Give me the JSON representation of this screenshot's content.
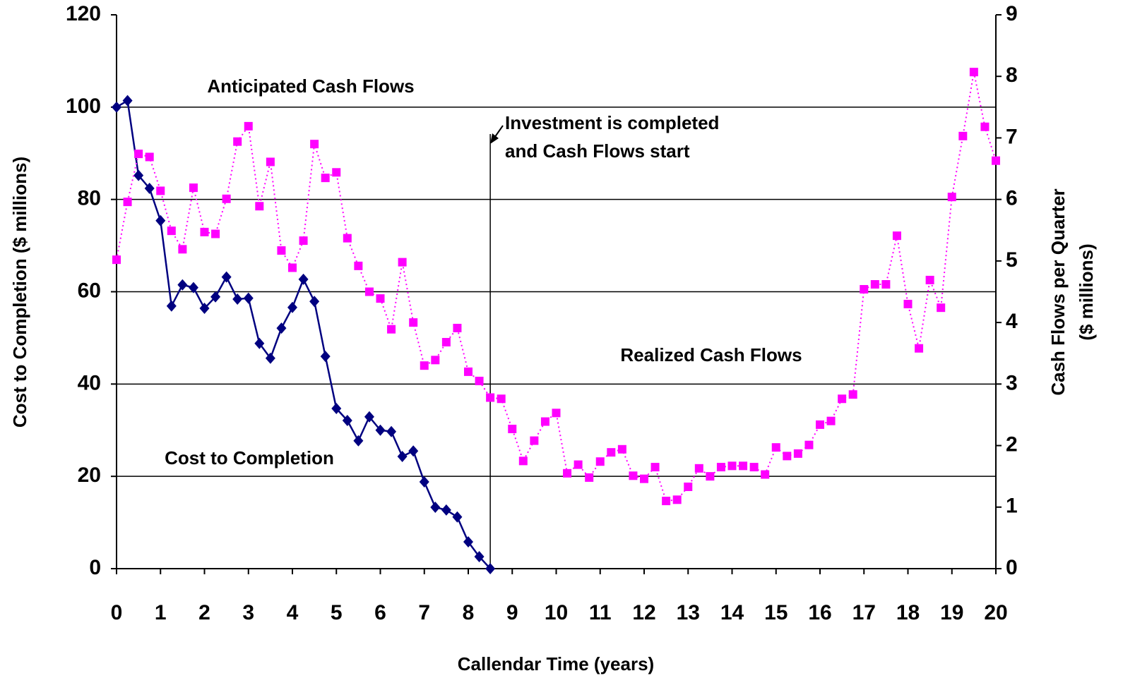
{
  "chart_data": {
    "type": "line",
    "xlabel": "Callendar Time (years)",
    "ylabel": "Cost to Completion ($ millions)",
    "y2label": [
      "Cash Flows per Quarter",
      "($ millions)"
    ],
    "annotations": [
      "Anticipated Cash Flows",
      "Investment is completed",
      "and Cash Flows start"
    ],
    "xlim": [
      0,
      20
    ],
    "xticks": [
      0,
      1,
      2,
      3,
      4,
      5,
      6,
      7,
      8,
      9,
      10,
      11,
      12,
      13,
      14,
      15,
      16,
      17,
      18,
      19,
      20
    ],
    "ylim": [
      0,
      120
    ],
    "yticks": [
      0,
      20,
      40,
      60,
      80,
      100,
      120
    ],
    "y2lim": [
      0,
      9
    ],
    "y2ticks": [
      0,
      1,
      2,
      3,
      4,
      5,
      6,
      7,
      8,
      9
    ],
    "grid": true,
    "series": [
      {
        "name": "Cost to Completion",
        "color": "#000080",
        "line": "solid",
        "marker": "diamond",
        "x": [
          0,
          0.25,
          0.5,
          0.75,
          1,
          1.25,
          1.5,
          1.75,
          2,
          2.25,
          2.5,
          2.75,
          3,
          3.25,
          3.5,
          3.75,
          4,
          4.25,
          4.5,
          4.75,
          5,
          5.25,
          5.5,
          5.75,
          6,
          6.25,
          6.5,
          6.75,
          7,
          7.25,
          7.5,
          7.75,
          8,
          8.25,
          8.5
        ],
        "values": [
          100,
          101.4,
          85.2,
          82.4,
          75.4,
          56.9,
          61.5,
          60.9,
          56.4,
          58.9,
          63.2,
          58.4,
          58.6,
          48.8,
          45.6,
          52.1,
          56.6,
          62.7,
          57.9,
          46.0,
          34.7,
          32.1,
          27.7,
          32.9,
          30.0,
          29.7,
          24.3,
          25.5,
          18.8,
          13.3,
          12.7,
          11.2,
          5.8,
          2.6,
          0
        ]
      },
      {
        "name": "Realized Cash Flows",
        "color": "#ff00ff",
        "line": "dotted",
        "marker": "square",
        "axis": "y2",
        "x": [
          0,
          0.25,
          0.5,
          0.75,
          1,
          1.25,
          1.5,
          1.75,
          2,
          2.25,
          2.5,
          2.75,
          3,
          3.25,
          3.5,
          3.75,
          4,
          4.25,
          4.5,
          4.75,
          5,
          5.25,
          5.5,
          5.75,
          6,
          6.25,
          6.5,
          6.75,
          7,
          7.25,
          7.5,
          7.75,
          8,
          8.25,
          8.5,
          8.75,
          9,
          9.25,
          9.5,
          9.75,
          10,
          10.25,
          10.5,
          10.75,
          11,
          11.25,
          11.5,
          11.75,
          12,
          12.25,
          12.5,
          12.75,
          13,
          13.25,
          13.5,
          13.75,
          14,
          14.25,
          14.5,
          14.75,
          15,
          15.25,
          15.5,
          15.75,
          16,
          16.25,
          16.5,
          16.75,
          17,
          17.25,
          17.5,
          17.75,
          18,
          18.25,
          18.5,
          18.75,
          19,
          19.25,
          19.5,
          19.75,
          20
        ],
        "values": [
          5.02,
          5.96,
          6.74,
          6.69,
          6.14,
          5.49,
          5.19,
          6.19,
          5.47,
          5.44,
          6.01,
          6.94,
          7.19,
          5.89,
          6.61,
          5.17,
          4.89,
          5.33,
          6.9,
          6.35,
          6.44,
          5.37,
          4.92,
          4.5,
          4.39,
          3.89,
          4.98,
          4.0,
          3.3,
          3.39,
          3.68,
          3.91,
          3.2,
          3.05,
          2.78,
          2.76,
          2.27,
          1.75,
          2.08,
          2.39,
          2.53,
          1.55,
          1.69,
          1.48,
          1.74,
          1.89,
          1.94,
          1.51,
          1.46,
          1.65,
          1.1,
          1.12,
          1.33,
          1.63,
          1.5,
          1.65,
          1.67,
          1.67,
          1.65,
          1.53,
          1.97,
          1.83,
          1.87,
          2.01,
          2.34,
          2.4,
          2.76,
          2.83,
          4.54,
          4.62,
          4.62,
          5.41,
          4.3,
          3.58,
          4.69,
          4.24,
          6.04,
          7.03,
          8.07,
          7.18,
          6.63
        ]
      }
    ]
  }
}
